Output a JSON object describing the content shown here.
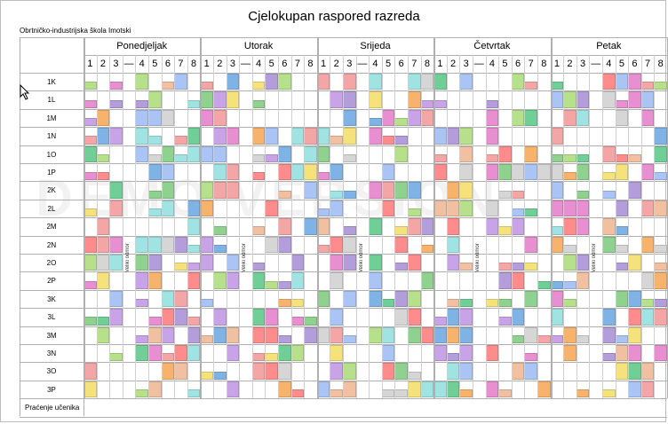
{
  "title": "Cjelokupan raspored razreda",
  "school": "Obrtničko-industrijska škola  Imotski",
  "days": [
    "Ponedjeljak",
    "Utorak",
    "Srijeda",
    "Četvrtak",
    "Petak"
  ],
  "periods_before_break": [
    "1",
    "2",
    "3"
  ],
  "break_col": "—",
  "periods_after_break": [
    "4",
    "5",
    "6",
    "7",
    "8"
  ],
  "classes": [
    "1K",
    "1L",
    "1M",
    "1N",
    "1O",
    "1P",
    "2K",
    "2L",
    "2M",
    "2N",
    "2O",
    "2P",
    "3K",
    "3L",
    "3M",
    "3N",
    "3O",
    "3P"
  ],
  "break_label": "Veliki odmor",
  "footer": "Praćenje učenika",
  "watermark": "DEMO VERSION",
  "palette": [
    "#8fd18f",
    "#f4a6a6",
    "#f6e27a",
    "#a9c4f5",
    "#c9a3e8",
    "#f7b36b",
    "#9fe3e3",
    "#e88fd1",
    "#b7e08a",
    "#f0c0a0",
    "#7fb3e6",
    "#d6d6d6",
    "#6fcf97",
    "#ff8c8c",
    "#b39ddb"
  ]
}
